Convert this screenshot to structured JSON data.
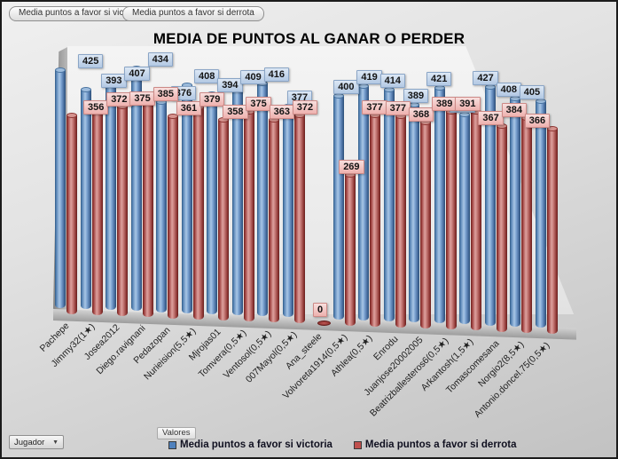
{
  "toolbar": {
    "button_victoria": "Media puntos a favor si victoria",
    "button_derrota": "Media puntos a favor si derrota"
  },
  "title": "MEDIA DE PUNTOS AL GANAR O PERDER",
  "axis_field_button": "Valores",
  "filter_button": {
    "label": "Jugador"
  },
  "legend": [
    {
      "label": "Media puntos a favor si victoria",
      "color": "#4f81bd"
    },
    {
      "label": "Media puntos a favor si derrota",
      "color": "#c0504d"
    }
  ],
  "chart_data": {
    "type": "bar",
    "style": "3d-cylinder",
    "title": "MEDIA DE PUNTOS AL GANAR O PERDER",
    "categories": [
      "Pachepe",
      "Jimmy32(1★)",
      "Josea2012",
      "Diego.ravignani",
      "Pedazopan",
      "Nurieision(5,5★)",
      "Mjrojas01",
      "Tomvera(0,5★)",
      "Ventosol(0,5★)",
      "007Mayol(0,5★)",
      "Ana_steele",
      "Volvoreta1914(0,5★)",
      "Athlea(0,5★)",
      "Enrodu",
      "Juanjose20002005",
      "Beatrizballesteros6(0,5★)",
      "Arkantosh(1,5★)",
      "Tomascomesana",
      "Norgio2(8,5★)",
      "Antonio.doncel.75(0,5★)"
    ],
    "series": [
      {
        "name": "Media puntos a favor si victoria",
        "color": "#4f81bd",
        "values": [
          425,
          393,
          407,
          434,
          376,
          408,
          394,
          409,
          416,
          377,
          0,
          400,
          419,
          414,
          389,
          421,
          376,
          427,
          408,
          405
        ]
      },
      {
        "name": "Media puntos a favor si derrota",
        "color": "#c0504d",
        "values": [
          356,
          372,
          375,
          385,
          361,
          379,
          358,
          375,
          363,
          372,
          0,
          269,
          377,
          377,
          368,
          389,
          391,
          367,
          384,
          366
        ]
      }
    ],
    "data_labels": true,
    "legend_position": "bottom",
    "ylim": [
      0,
      450
    ]
  }
}
